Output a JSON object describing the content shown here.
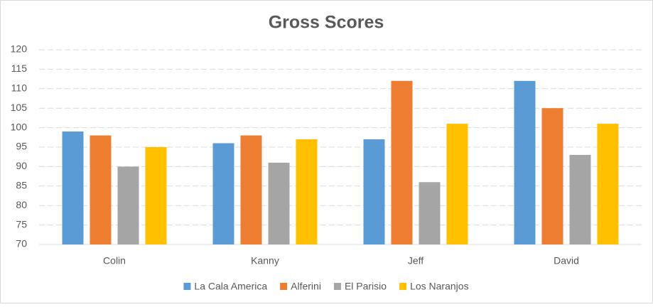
{
  "chart_data": {
    "type": "bar",
    "title": "Gross Scores",
    "categories": [
      "Colin",
      "Kanny",
      "Jeff",
      "David"
    ],
    "series": [
      {
        "name": "La Cala America",
        "color": "#5b9bd5",
        "values": [
          99,
          96,
          97,
          112
        ]
      },
      {
        "name": "Alferini",
        "color": "#ed7d31",
        "values": [
          98,
          98,
          112,
          105
        ]
      },
      {
        "name": "El Parisio",
        "color": "#a5a5a5",
        "values": [
          90,
          91,
          86,
          93
        ]
      },
      {
        "name": "Los Naranjos",
        "color": "#ffc000",
        "values": [
          95,
          97,
          101,
          101
        ]
      }
    ],
    "ylim": [
      70,
      120
    ],
    "yticks": [
      70,
      75,
      80,
      85,
      90,
      95,
      100,
      105,
      110,
      115,
      120
    ],
    "grid": true,
    "legend": "bottom"
  }
}
